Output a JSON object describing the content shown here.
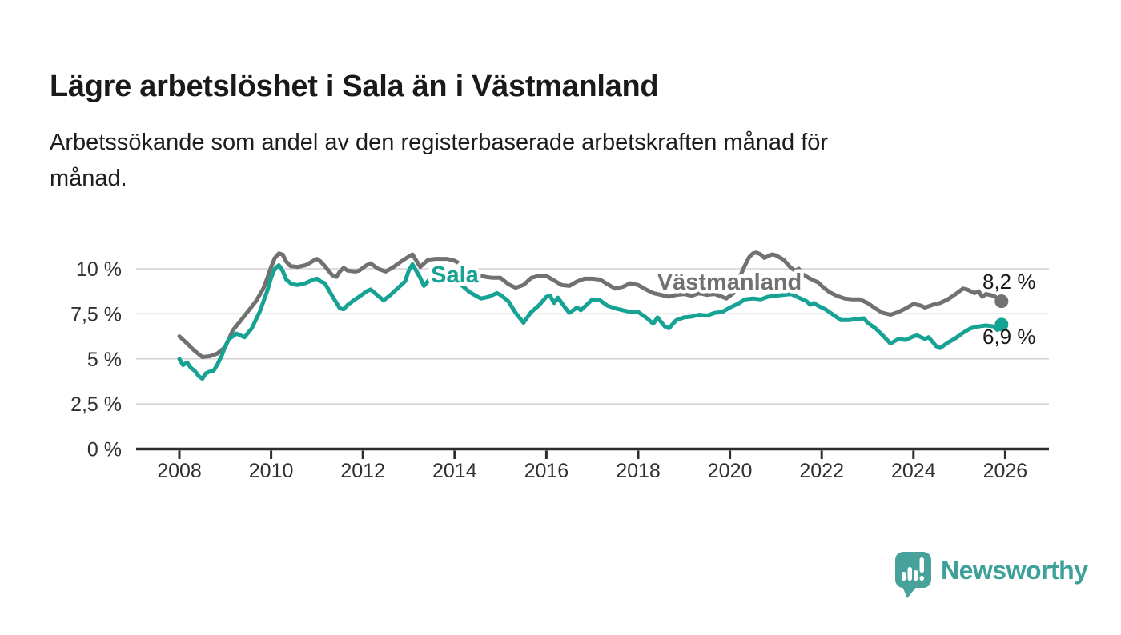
{
  "header": {
    "title": "Lägre arbetslöshet i Sala än i Västmanland",
    "subtitle_lines": [
      "Arbetssökande som andel av den registerbaserade arbetskraften månad för",
      "månad."
    ]
  },
  "chart_data": {
    "type": "line",
    "unit": "%",
    "grid": true,
    "x_axis": {
      "ticks": [
        {
          "value": 2008,
          "label": "2008"
        },
        {
          "value": 2010,
          "label": "2010"
        },
        {
          "value": 2012,
          "label": "2012"
        },
        {
          "value": 2014,
          "label": "2014"
        },
        {
          "value": 2016,
          "label": "2016"
        },
        {
          "value": 2018,
          "label": "2018"
        },
        {
          "value": 2020,
          "label": "2020"
        },
        {
          "value": 2022,
          "label": "2022"
        },
        {
          "value": 2024,
          "label": "2024"
        },
        {
          "value": 2026,
          "label": "2026"
        }
      ],
      "range": [
        2007.1,
        2026.95
      ]
    },
    "y_axis": {
      "ticks": [
        {
          "value": 10,
          "label": "10 %"
        },
        {
          "value": 7.5,
          "label": "7,5 %"
        },
        {
          "value": 5,
          "label": "5 %"
        },
        {
          "value": 2.5,
          "label": "2,5 %"
        },
        {
          "value": 0,
          "label": "0 %"
        }
      ],
      "range": [
        0,
        11.6
      ]
    },
    "series": [
      {
        "name": "Västmanland",
        "color": "#717171",
        "end_label": "8,2 %",
        "end_value": 8.2,
        "points": [
          [
            2008.0,
            6.25
          ],
          [
            2008.17,
            5.85
          ],
          [
            2008.33,
            5.45
          ],
          [
            2008.5,
            5.1
          ],
          [
            2008.67,
            5.15
          ],
          [
            2008.83,
            5.3
          ],
          [
            2009.0,
            5.65
          ],
          [
            2009.08,
            6.1
          ],
          [
            2009.17,
            6.6
          ],
          [
            2009.33,
            7.1
          ],
          [
            2009.5,
            7.65
          ],
          [
            2009.67,
            8.2
          ],
          [
            2009.83,
            8.9
          ],
          [
            2009.92,
            9.5
          ],
          [
            2010.0,
            10.1
          ],
          [
            2010.08,
            10.6
          ],
          [
            2010.17,
            10.85
          ],
          [
            2010.25,
            10.8
          ],
          [
            2010.33,
            10.4
          ],
          [
            2010.42,
            10.15
          ],
          [
            2010.58,
            10.1
          ],
          [
            2010.75,
            10.2
          ],
          [
            2010.83,
            10.3
          ],
          [
            2010.92,
            10.45
          ],
          [
            2011.0,
            10.55
          ],
          [
            2011.08,
            10.4
          ],
          [
            2011.17,
            10.15
          ],
          [
            2011.33,
            9.65
          ],
          [
            2011.42,
            9.55
          ],
          [
            2011.5,
            9.85
          ],
          [
            2011.58,
            10.05
          ],
          [
            2011.67,
            9.9
          ],
          [
            2011.83,
            9.85
          ],
          [
            2011.92,
            9.9
          ],
          [
            2012.0,
            10.05
          ],
          [
            2012.08,
            10.2
          ],
          [
            2012.17,
            10.3
          ],
          [
            2012.33,
            10.0
          ],
          [
            2012.5,
            9.85
          ],
          [
            2012.67,
            10.1
          ],
          [
            2012.83,
            10.4
          ],
          [
            2012.92,
            10.55
          ],
          [
            2013.08,
            10.8
          ],
          [
            2013.25,
            10.1
          ],
          [
            2013.42,
            10.5
          ],
          [
            2013.58,
            10.55
          ],
          [
            2013.83,
            10.55
          ],
          [
            2014.0,
            10.45
          ],
          [
            2014.17,
            10.2
          ],
          [
            2014.33,
            9.9
          ],
          [
            2014.5,
            9.65
          ],
          [
            2014.67,
            9.55
          ],
          [
            2014.83,
            9.5
          ],
          [
            2015.0,
            9.5
          ],
          [
            2015.17,
            9.15
          ],
          [
            2015.33,
            8.95
          ],
          [
            2015.5,
            9.1
          ],
          [
            2015.67,
            9.5
          ],
          [
            2015.83,
            9.6
          ],
          [
            2016.0,
            9.6
          ],
          [
            2016.17,
            9.35
          ],
          [
            2016.33,
            9.1
          ],
          [
            2016.5,
            9.05
          ],
          [
            2016.67,
            9.3
          ],
          [
            2016.83,
            9.45
          ],
          [
            2017.0,
            9.45
          ],
          [
            2017.17,
            9.4
          ],
          [
            2017.33,
            9.15
          ],
          [
            2017.5,
            8.9
          ],
          [
            2017.67,
            9.0
          ],
          [
            2017.83,
            9.2
          ],
          [
            2018.0,
            9.1
          ],
          [
            2018.17,
            8.85
          ],
          [
            2018.33,
            8.65
          ],
          [
            2018.5,
            8.55
          ],
          [
            2018.67,
            8.45
          ],
          [
            2018.83,
            8.55
          ],
          [
            2019.0,
            8.6
          ],
          [
            2019.17,
            8.5
          ],
          [
            2019.33,
            8.65
          ],
          [
            2019.5,
            8.55
          ],
          [
            2019.67,
            8.6
          ],
          [
            2019.83,
            8.45
          ],
          [
            2019.92,
            8.35
          ],
          [
            2020.08,
            8.65
          ],
          [
            2020.17,
            9.3
          ],
          [
            2020.33,
            10.2
          ],
          [
            2020.42,
            10.65
          ],
          [
            2020.5,
            10.85
          ],
          [
            2020.58,
            10.9
          ],
          [
            2020.67,
            10.8
          ],
          [
            2020.75,
            10.6
          ],
          [
            2020.83,
            10.7
          ],
          [
            2020.92,
            10.8
          ],
          [
            2021.0,
            10.75
          ],
          [
            2021.17,
            10.5
          ],
          [
            2021.33,
            10.05
          ],
          [
            2021.42,
            9.9
          ],
          [
            2021.5,
            10.0
          ],
          [
            2021.58,
            9.7
          ],
          [
            2021.75,
            9.45
          ],
          [
            2021.83,
            9.35
          ],
          [
            2021.92,
            9.25
          ],
          [
            2022.0,
            9.05
          ],
          [
            2022.17,
            8.7
          ],
          [
            2022.33,
            8.5
          ],
          [
            2022.5,
            8.35
          ],
          [
            2022.67,
            8.3
          ],
          [
            2022.83,
            8.3
          ],
          [
            2023.0,
            8.1
          ],
          [
            2023.17,
            7.8
          ],
          [
            2023.33,
            7.55
          ],
          [
            2023.5,
            7.45
          ],
          [
            2023.67,
            7.6
          ],
          [
            2023.83,
            7.8
          ],
          [
            2024.0,
            8.05
          ],
          [
            2024.17,
            7.95
          ],
          [
            2024.25,
            7.85
          ],
          [
            2024.42,
            8.0
          ],
          [
            2024.58,
            8.1
          ],
          [
            2024.75,
            8.3
          ],
          [
            2024.92,
            8.6
          ],
          [
            2025.08,
            8.9
          ],
          [
            2025.17,
            8.85
          ],
          [
            2025.33,
            8.65
          ],
          [
            2025.42,
            8.75
          ],
          [
            2025.5,
            8.45
          ],
          [
            2025.58,
            8.6
          ],
          [
            2025.75,
            8.5
          ],
          [
            2025.92,
            8.2
          ]
        ]
      },
      {
        "name": "Sala",
        "color": "#16a294",
        "end_label": "6,9 %",
        "end_value": 6.9,
        "points": [
          [
            2008.0,
            5.0
          ],
          [
            2008.08,
            4.65
          ],
          [
            2008.17,
            4.8
          ],
          [
            2008.25,
            4.5
          ],
          [
            2008.33,
            4.35
          ],
          [
            2008.42,
            4.05
          ],
          [
            2008.5,
            3.9
          ],
          [
            2008.58,
            4.2
          ],
          [
            2008.67,
            4.3
          ],
          [
            2008.75,
            4.35
          ],
          [
            2008.83,
            4.7
          ],
          [
            2008.92,
            5.15
          ],
          [
            2009.0,
            5.7
          ],
          [
            2009.08,
            6.1
          ],
          [
            2009.25,
            6.4
          ],
          [
            2009.42,
            6.2
          ],
          [
            2009.58,
            6.7
          ],
          [
            2009.75,
            7.6
          ],
          [
            2009.92,
            8.8
          ],
          [
            2010.0,
            9.5
          ],
          [
            2010.08,
            10.0
          ],
          [
            2010.17,
            10.2
          ],
          [
            2010.25,
            9.9
          ],
          [
            2010.33,
            9.4
          ],
          [
            2010.45,
            9.15
          ],
          [
            2010.58,
            9.1
          ],
          [
            2010.75,
            9.2
          ],
          [
            2010.92,
            9.4
          ],
          [
            2011.0,
            9.45
          ],
          [
            2011.08,
            9.3
          ],
          [
            2011.17,
            9.2
          ],
          [
            2011.33,
            8.5
          ],
          [
            2011.5,
            7.8
          ],
          [
            2011.58,
            7.75
          ],
          [
            2011.67,
            8.0
          ],
          [
            2011.83,
            8.3
          ],
          [
            2011.92,
            8.45
          ],
          [
            2012.08,
            8.75
          ],
          [
            2012.17,
            8.85
          ],
          [
            2012.33,
            8.5
          ],
          [
            2012.45,
            8.25
          ],
          [
            2012.58,
            8.5
          ],
          [
            2012.75,
            8.9
          ],
          [
            2012.92,
            9.3
          ],
          [
            2013.0,
            9.9
          ],
          [
            2013.08,
            10.25
          ],
          [
            2013.25,
            9.5
          ],
          [
            2013.33,
            9.05
          ],
          [
            2013.5,
            9.55
          ],
          [
            2013.67,
            9.5
          ],
          [
            2013.83,
            9.45
          ],
          [
            2014.0,
            9.35
          ],
          [
            2014.17,
            9.05
          ],
          [
            2014.33,
            8.7
          ],
          [
            2014.5,
            8.45
          ],
          [
            2014.58,
            8.35
          ],
          [
            2014.75,
            8.45
          ],
          [
            2014.92,
            8.65
          ],
          [
            2015.0,
            8.55
          ],
          [
            2015.17,
            8.2
          ],
          [
            2015.33,
            7.55
          ],
          [
            2015.5,
            7.0
          ],
          [
            2015.67,
            7.6
          ],
          [
            2015.83,
            7.95
          ],
          [
            2016.0,
            8.45
          ],
          [
            2016.08,
            8.5
          ],
          [
            2016.17,
            8.1
          ],
          [
            2016.25,
            8.4
          ],
          [
            2016.42,
            7.8
          ],
          [
            2016.5,
            7.55
          ],
          [
            2016.67,
            7.85
          ],
          [
            2016.75,
            7.7
          ],
          [
            2016.92,
            8.1
          ],
          [
            2017.0,
            8.3
          ],
          [
            2017.17,
            8.25
          ],
          [
            2017.33,
            7.95
          ],
          [
            2017.5,
            7.8
          ],
          [
            2017.67,
            7.7
          ],
          [
            2017.83,
            7.6
          ],
          [
            2018.0,
            7.6
          ],
          [
            2018.17,
            7.3
          ],
          [
            2018.33,
            6.95
          ],
          [
            2018.42,
            7.3
          ],
          [
            2018.58,
            6.8
          ],
          [
            2018.67,
            6.7
          ],
          [
            2018.83,
            7.15
          ],
          [
            2019.0,
            7.3
          ],
          [
            2019.17,
            7.35
          ],
          [
            2019.33,
            7.45
          ],
          [
            2019.5,
            7.4
          ],
          [
            2019.67,
            7.55
          ],
          [
            2019.83,
            7.6
          ],
          [
            2020.0,
            7.85
          ],
          [
            2020.17,
            8.05
          ],
          [
            2020.33,
            8.3
          ],
          [
            2020.5,
            8.35
          ],
          [
            2020.67,
            8.3
          ],
          [
            2020.83,
            8.45
          ],
          [
            2021.0,
            8.5
          ],
          [
            2021.17,
            8.55
          ],
          [
            2021.33,
            8.6
          ],
          [
            2021.5,
            8.4
          ],
          [
            2021.67,
            8.2
          ],
          [
            2021.75,
            8.0
          ],
          [
            2021.83,
            8.1
          ],
          [
            2021.92,
            7.95
          ],
          [
            2022.08,
            7.75
          ],
          [
            2022.25,
            7.45
          ],
          [
            2022.42,
            7.15
          ],
          [
            2022.58,
            7.15
          ],
          [
            2022.75,
            7.2
          ],
          [
            2022.92,
            7.25
          ],
          [
            2023.0,
            7.0
          ],
          [
            2023.17,
            6.7
          ],
          [
            2023.33,
            6.3
          ],
          [
            2023.5,
            5.85
          ],
          [
            2023.67,
            6.1
          ],
          [
            2023.83,
            6.05
          ],
          [
            2024.0,
            6.25
          ],
          [
            2024.08,
            6.3
          ],
          [
            2024.25,
            6.1
          ],
          [
            2024.33,
            6.2
          ],
          [
            2024.5,
            5.7
          ],
          [
            2024.58,
            5.6
          ],
          [
            2024.75,
            5.9
          ],
          [
            2024.92,
            6.15
          ],
          [
            2025.08,
            6.45
          ],
          [
            2025.25,
            6.7
          ],
          [
            2025.42,
            6.8
          ],
          [
            2025.58,
            6.85
          ],
          [
            2025.75,
            6.8
          ],
          [
            2025.83,
            6.6
          ],
          [
            2025.92,
            6.9
          ]
        ]
      }
    ]
  },
  "footer": {
    "brand": "Newsworthy",
    "brand_color": "#3da09b",
    "icon_color": "#47a29b"
  }
}
